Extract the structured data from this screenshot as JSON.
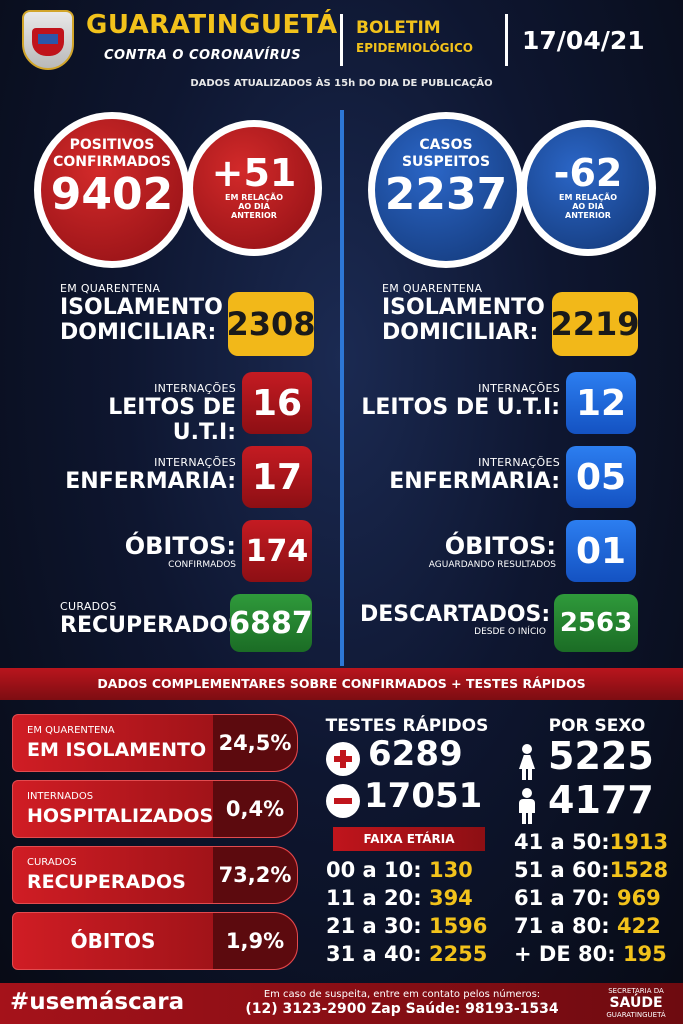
{
  "header": {
    "title": "GUARATINGUETÁ",
    "subtitle": "CONTRA O CORONAVÍRUS",
    "boletim_line1": "BOLETIM",
    "boletim_line2": "EPIDEMIOLÓGICO",
    "date": "17/04/21",
    "updated_note": "DADOS ATUALIZADOS ÀS 15h DO DIA DE PUBLICAÇÃO"
  },
  "left": {
    "circle_label_1": "POSITIVOS",
    "circle_label_2": "CONFIRMADOS",
    "circle_value": "9402",
    "delta_value": "+51",
    "delta_caption_1": "EM RELAÇÃO",
    "delta_caption_2": "AO DIA",
    "delta_caption_3": "ANTERIOR",
    "quarantine_small": "EM QUARENTENA",
    "quarantine_big_1": "ISOLAMENTO",
    "quarantine_big_2": "DOMICILIAR:",
    "quarantine_value": "2308",
    "uti_small": "INTERNAÇÕES",
    "uti_big": "LEITOS DE U.T.I:",
    "uti_value": "16",
    "enf_small": "INTERNAÇÕES",
    "enf_big": "ENFERMARIA:",
    "enf_value": "17",
    "obitos_big": "ÓBITOS:",
    "obitos_small": "CONFIRMADOS",
    "obitos_value": "174",
    "curados_small": "CURADOS",
    "curados_big": "RECUPERADOS:",
    "curados_value": "6887"
  },
  "right": {
    "circle_label_1": "CASOS",
    "circle_label_2": "SUSPEITOS",
    "circle_value": "2237",
    "delta_value": "-62",
    "delta_caption_1": "EM RELAÇÃO",
    "delta_caption_2": "AO DIA",
    "delta_caption_3": "ANTERIOR",
    "quarantine_small": "EM QUARENTENA",
    "quarantine_big_1": "ISOLAMENTO",
    "quarantine_big_2": "DOMICILIAR:",
    "quarantine_value": "2219",
    "uti_small": "INTERNAÇÕES",
    "uti_big": "LEITOS DE U.T.I:",
    "uti_value": "12",
    "enf_small": "INTERNAÇÕES",
    "enf_big": "ENFERMARIA:",
    "enf_value": "05",
    "obitos_big": "ÓBITOS:",
    "obitos_small": "AGUARDANDO RESULTADOS",
    "obitos_value": "01",
    "descartados_big": "DESCARTADOS:",
    "descartados_small": "DESDE O INÍCIO",
    "descartados_value": "2563"
  },
  "banner": "DADOS COMPLEMENTARES SOBRE CONFIRMADOS + TESTES RÁPIDOS",
  "complementary": {
    "isolamento_small": "EM QUARENTENA",
    "isolamento_big": "EM ISOLAMENTO",
    "isolamento_pct": "24,5%",
    "hosp_small": "INTERNADOS",
    "hosp_big": "HOSPITALIZADOS",
    "hosp_pct": "0,4%",
    "rec_small": "CURADOS",
    "rec_big": "RECUPERADOS",
    "rec_pct": "73,2%",
    "obitos_big": "ÓBITOS",
    "obitos_pct": "1,9%"
  },
  "tests": {
    "title": "TESTES RÁPIDOS",
    "positive": "6289",
    "negative": "17051"
  },
  "age": {
    "title": "FAIXA ETÁRIA",
    "rows": [
      {
        "label": "00 a 10:",
        "value": "130"
      },
      {
        "label": "11 a 20:",
        "value": "394"
      },
      {
        "label": "21 a 30:",
        "value": "1596"
      },
      {
        "label": "31 a 40:",
        "value": "2255"
      },
      {
        "label": "41 a 50:",
        "value": "1913"
      },
      {
        "label": "51 a 60:",
        "value": "1528"
      },
      {
        "label": "61 a 70:",
        "value": "969"
      },
      {
        "label": "71 a 80:",
        "value": "422"
      },
      {
        "label": "+ DE 80:",
        "value": "195"
      }
    ]
  },
  "sex": {
    "title": "POR SEXO",
    "female": "5225",
    "male": "4177"
  },
  "footer": {
    "hashtag": "#usemáscara",
    "contact_line1": "Em caso de suspeita, entre em contato pelos números:",
    "contact_line2": "(12) 3123-2900 Zap Saúde: 98193-1534",
    "sec_line1": "SECRETARIA DA",
    "sec_line2": "SAÚDE",
    "sec_line3": "GUARATINGUETÁ"
  },
  "colors": {
    "red": "#c41b22",
    "blue": "#2c7ef0",
    "yellow": "#f2b819",
    "green": "#2f9a3b",
    "gold_text": "#f2c21b"
  },
  "icons": [
    "city-crest-icon",
    "plus-icon",
    "minus-icon",
    "female-person-icon",
    "male-person-icon"
  ]
}
